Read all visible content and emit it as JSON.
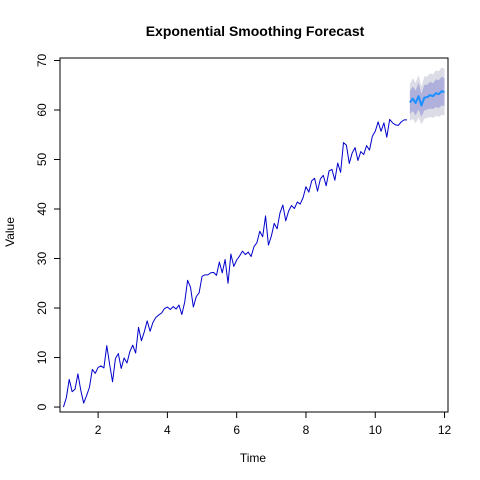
{
  "chart_data": {
    "type": "line",
    "title": "Exponential Smoothing Forecast",
    "xlabel": "Time",
    "ylabel": "Value",
    "xlim": [
      0.9,
      12.1
    ],
    "ylim": [
      -1,
      70.5
    ],
    "xticks": [
      2,
      4,
      6,
      8,
      10,
      12
    ],
    "yticks": [
      0,
      10,
      20,
      30,
      40,
      50,
      60,
      70
    ],
    "grid": false,
    "series": [
      {
        "role": "observed",
        "color": "#0000cc",
        "x_start": 1.0,
        "x_step": 0.0833333,
        "values": [
          0.0,
          1.9,
          5.6,
          3.1,
          3.6,
          6.7,
          3.4,
          0.8,
          2.3,
          4.0,
          7.6,
          6.8,
          8.0,
          8.3,
          7.9,
          12.4,
          8.6,
          5.1,
          9.8,
          10.8,
          7.8,
          9.9,
          8.9,
          11.2,
          12.5,
          10.9,
          16.1,
          13.4,
          15.2,
          17.4,
          15.3,
          17.1,
          18.1,
          18.6,
          19.0,
          19.9,
          20.2,
          19.7,
          20.3,
          19.8,
          20.6,
          18.7,
          21.2,
          25.6,
          24.2,
          20.2,
          22.3,
          23.1,
          26.4,
          26.7,
          26.7,
          27.1,
          27.2,
          26.6,
          29.3,
          27.1,
          29.8,
          25.0,
          30.9,
          28.4,
          29.7,
          30.5,
          31.5,
          30.8,
          31.3,
          30.4,
          32.4,
          33.2,
          35.5,
          34.4,
          38.6,
          32.7,
          34.5,
          37.1,
          36.0,
          39.2,
          40.8,
          37.6,
          39.6,
          40.7,
          40.1,
          41.4,
          41.0,
          42.3,
          44.5,
          43.4,
          45.7,
          46.2,
          43.6,
          46.1,
          46.8,
          44.7,
          47.7,
          48.0,
          45.8,
          49.3,
          47.4,
          53.4,
          52.9,
          49.2,
          51.3,
          52.4,
          49.8,
          51.6,
          51.0,
          52.8,
          51.9,
          54.7,
          55.7,
          57.6,
          55.7,
          57.4,
          54.5,
          58.1,
          57.4,
          57.0,
          56.9,
          57.6,
          58.0,
          58.0
        ]
      },
      {
        "role": "forecast",
        "color": "#1e90ff",
        "x": [
          11.0,
          11.083,
          11.167,
          11.25,
          11.333,
          11.417,
          11.5,
          11.583,
          11.667,
          11.75,
          11.833,
          11.917,
          12.0
        ],
        "values": [
          61.5,
          62.3,
          61.4,
          62.8,
          60.9,
          62.5,
          62.6,
          63.0,
          62.8,
          63.4,
          63.2,
          63.8,
          63.6
        ],
        "band_80": {
          "color": "#b0b0dc",
          "lower": [
            59.2,
            59.8,
            58.9,
            60.1,
            58.6,
            59.9,
            60.1,
            60.3,
            60.2,
            60.6,
            60.4,
            60.9,
            60.8
          ],
          "upper": [
            63.8,
            64.8,
            63.9,
            65.5,
            63.2,
            65.1,
            65.1,
            65.7,
            65.4,
            66.2,
            66.0,
            66.7,
            66.4
          ]
        },
        "band_95": {
          "color": "#dcdce6",
          "lower": [
            57.8,
            58.2,
            57.3,
            58.5,
            57.1,
            58.2,
            58.4,
            58.6,
            58.4,
            58.8,
            58.6,
            59.0,
            58.9
          ],
          "upper": [
            65.2,
            66.4,
            65.5,
            67.1,
            64.7,
            66.8,
            66.8,
            67.4,
            67.2,
            68.0,
            67.8,
            68.6,
            68.3
          ]
        }
      }
    ]
  }
}
